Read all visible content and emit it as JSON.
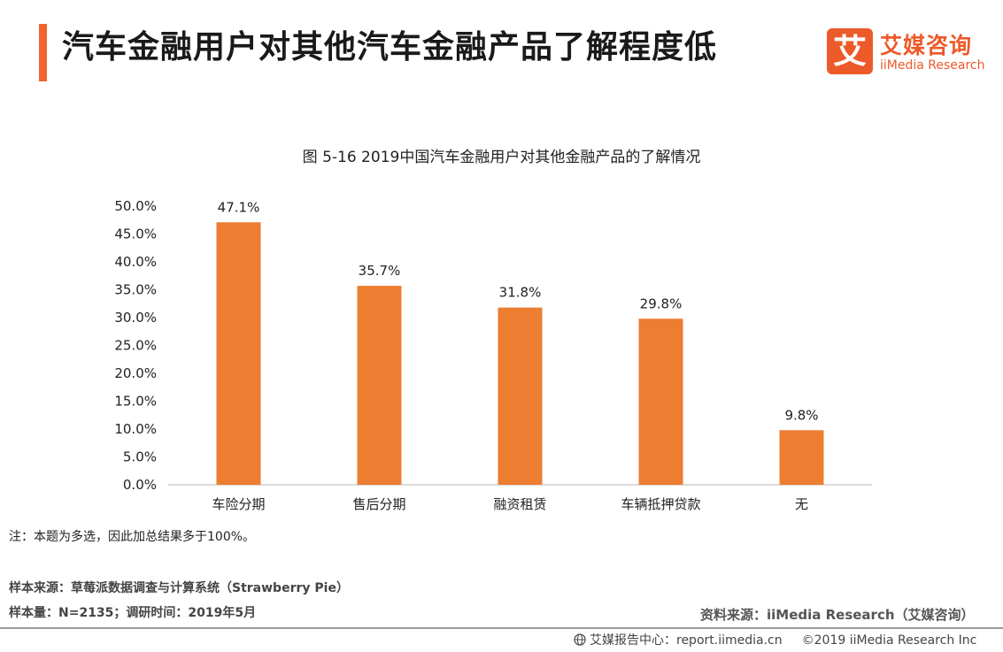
{
  "header": {
    "title": "汽车金融用户对其他汽车金融产品了解程度低",
    "accent_color": "#f0642e"
  },
  "logo": {
    "mark": "艾",
    "cn": "艾媒咨询",
    "en": "iiMedia Research"
  },
  "chart_data": {
    "type": "bar",
    "title": "图 5-16  2019中国汽车金融用户对其他金融产品的了解情况",
    "categories": [
      "车险分期",
      "售后分期",
      "融资租赁",
      "车辆抵押贷款",
      "无"
    ],
    "values": [
      47.1,
      35.7,
      31.8,
      29.8,
      9.8
    ],
    "value_labels": [
      "47.1%",
      "35.7%",
      "31.8%",
      "29.8%",
      "9.8%"
    ],
    "y_ticks": [
      "0.0%",
      "5.0%",
      "10.0%",
      "15.0%",
      "20.0%",
      "25.0%",
      "30.0%",
      "35.0%",
      "40.0%",
      "45.0%",
      "50.0%"
    ],
    "ylim": [
      0,
      50
    ],
    "y_step": 5,
    "bar_color": "#ed7d31",
    "grid": false,
    "xlabel": "",
    "ylabel": ""
  },
  "notes": {
    "note": "注：本题为多选，因此加总结果多于100%。",
    "sample_source": "样本来源：草莓派数据调查与计算系统（Strawberry Pie）",
    "sample_size": "样本量：N=2135；调研时间：2019年5月",
    "data_source": "资料来源：iiMedia Research（艾媒咨询）"
  },
  "footer": {
    "center": "艾媒报告中心：report.iimedia.cn",
    "copyright": "©2019  iiMedia Research  Inc"
  }
}
